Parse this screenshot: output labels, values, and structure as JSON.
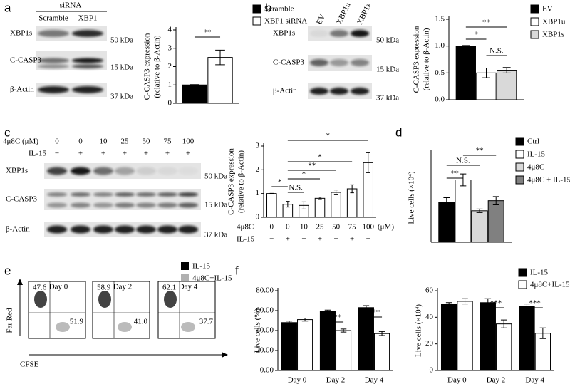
{
  "panel_labels": [
    "a",
    "b",
    "c",
    "d",
    "e",
    "f"
  ],
  "blots": {
    "a": {
      "header": "siRNA",
      "lanes": [
        "Scramble",
        "XBP1"
      ],
      "rows": [
        "XBP1s",
        "C-CASP3",
        "β-Actin"
      ],
      "markers": [
        "50 kDa",
        "15 kDa",
        "37 kDa"
      ]
    },
    "b": {
      "lanes": [
        "EV",
        "XBP1u",
        "XBP1s"
      ],
      "rows": [
        "XBP1s",
        "C-CASP3",
        "β-Actin"
      ],
      "markers": [
        "50 kDa",
        "15 kDa",
        "37 kDa"
      ]
    },
    "c": {
      "treatment_rows": [
        {
          "label": "4μ8C (μM)",
          "values": [
            "0",
            "0",
            "10",
            "25",
            "50",
            "75",
            "100"
          ]
        },
        {
          "label": "IL-15",
          "values": [
            "−",
            "+",
            "+",
            "+",
            "+",
            "+",
            "+"
          ]
        }
      ],
      "rows": [
        "XBP1s",
        "C-CASP3",
        "β-Actin"
      ],
      "markers": [
        "50 kDa",
        "15 kDa",
        "37 kDa"
      ]
    }
  },
  "flow": {
    "legend": [
      {
        "name": "IL-15",
        "color": "#000000"
      },
      {
        "name": "4μ8C+IL-15",
        "color": "#b0b0b0"
      }
    ],
    "x_label": "CFSE",
    "y_label": "Far Red",
    "plots": [
      {
        "title": "Day 0",
        "upper_left": "47.6",
        "lower_right": "51.9"
      },
      {
        "title": "Day 2",
        "upper_left": "58.9",
        "lower_right": "41.0"
      },
      {
        "title": "Day 4",
        "upper_left": "62.1",
        "lower_right": "37.7"
      }
    ]
  },
  "chart_data": [
    {
      "type": "bar",
      "y_label": [
        "C-CASP3 expression",
        "(relative to β-Actin)"
      ],
      "categories": [
        null
      ],
      "series": [
        {
          "name": "Scramble",
          "color": "#000000",
          "values": [
            1
          ],
          "errors": [
            0.02
          ]
        },
        {
          "name": "XBP1 siRNA",
          "color": "#ffffff",
          "values": [
            2.5
          ],
          "errors": [
            0.4
          ]
        }
      ],
      "ylim": [
        0,
        4
      ],
      "yticks": [
        0,
        1,
        2,
        3,
        4
      ],
      "legend": true,
      "annotations": [
        "**"
      ]
    },
    {
      "type": "bar",
      "y_label": [
        "C-CASP3 expression",
        "(relative to β-Actin)"
      ],
      "categories": [
        null
      ],
      "series": [
        {
          "name": "EV",
          "color": "#000000",
          "values": [
            1.0
          ],
          "errors": [
            0.01
          ]
        },
        {
          "name": "XBP1u",
          "color": "#ffffff",
          "values": [
            0.5
          ],
          "errors": [
            0.09
          ]
        },
        {
          "name": "XBP1s",
          "color": "#d9d9d9",
          "values": [
            0.55
          ],
          "errors": [
            0.05
          ]
        }
      ],
      "ylim": [
        0,
        1.5
      ],
      "yticks": [
        {
          "value": 0,
          "label": "0.0"
        },
        {
          "value": 0.5,
          "label": "0.5"
        },
        {
          "value": 1,
          "label": "1.0"
        },
        {
          "value": 1.5,
          "label": "1.5"
        }
      ],
      "legend": true,
      "annotations": [
        "*",
        "**",
        "N.S."
      ]
    },
    {
      "type": "bar",
      "y_label": [
        "C-CASP3  expression",
        "(relative to β-Actin)"
      ],
      "category_label": "4μ8C",
      "category_unit": "(μM)",
      "categories": [
        "0",
        "0",
        "10",
        "25",
        "50",
        "75",
        "100"
      ],
      "category_rows": [
        {
          "label": "IL-15",
          "values": [
            "−",
            "+",
            "+",
            "+",
            "+",
            "+",
            "+"
          ]
        }
      ],
      "series": [
        {
          "color": "#ffffff",
          "values": [
            1.0,
            0.55,
            0.5,
            0.8,
            1.05,
            1.2,
            2.3
          ],
          "errors": [
            0.01,
            0.12,
            0.15,
            0.05,
            0.1,
            0.17,
            0.42
          ]
        }
      ],
      "ylim": [
        0,
        3
      ],
      "yticks": [
        0,
        1,
        2,
        3
      ],
      "legend": false,
      "annotations": [
        "*",
        "N.S.",
        "*",
        "**",
        "*",
        "*"
      ]
    },
    {
      "type": "bar",
      "y_label": "Live cells (×10⁴)",
      "categories": [
        null
      ],
      "series": [
        {
          "name": "Ctrl",
          "color": "#000000",
          "values": [
            0.67
          ],
          "errors": [
            0.08
          ]
        },
        {
          "name": "IL-15",
          "color": "#ffffff",
          "values": [
            1.05
          ],
          "errors": [
            0.1
          ]
        },
        {
          "name": "4μ8C",
          "color": "#d9d9d9",
          "values": [
            0.53
          ],
          "errors": [
            0.03
          ]
        },
        {
          "name": "4μ8C + IL-15",
          "color": "#808080",
          "values": [
            0.7
          ],
          "errors": [
            0.07
          ]
        }
      ],
      "ylim": [
        0,
        1.5
      ],
      "legend": true,
      "annotations": [
        "N.S.",
        "**",
        "**"
      ]
    },
    {
      "type": "bar",
      "y_label": "Live cells (%)",
      "categories": [
        "Day 0",
        "Day 2",
        "Day 4"
      ],
      "series": [
        {
          "name": "IL-15",
          "color": "#000000",
          "values": [
            48,
            59,
            63
          ],
          "errors": [
            1.5,
            1.5,
            2
          ]
        },
        {
          "name": "4μ8C+IL-15",
          "color": "#ffffff",
          "values": [
            51,
            40,
            37
          ],
          "errors": [
            1.5,
            1.5,
            2
          ]
        }
      ],
      "ylim": [
        0,
        80
      ],
      "yticks": [
        {
          "value": 0,
          "label": "0.00"
        },
        {
          "value": 20,
          "label": "20.00"
        },
        {
          "value": 40,
          "label": "40.00"
        },
        {
          "value": 60,
          "label": "60.00"
        },
        {
          "value": 80,
          "label": "80.00"
        }
      ],
      "legend": false,
      "annotations": [
        "***",
        "***"
      ]
    },
    {
      "type": "bar",
      "y_label": "Live cells (×10⁴)",
      "categories": [
        "Day 0",
        "Day 2",
        "Day 4"
      ],
      "series": [
        {
          "name": "IL-15",
          "color": "#000000",
          "values": [
            50,
            51,
            48
          ],
          "errors": [
            1,
            3,
            2
          ]
        },
        {
          "name": "4μ8C+IL-15",
          "color": "#ffffff",
          "values": [
            52,
            35,
            28
          ],
          "errors": [
            2,
            3,
            4
          ]
        }
      ],
      "ylim": [
        0,
        60
      ],
      "yticks": [
        0,
        20,
        40,
        60
      ],
      "legend": true,
      "annotations": [
        "***",
        "***"
      ]
    }
  ]
}
